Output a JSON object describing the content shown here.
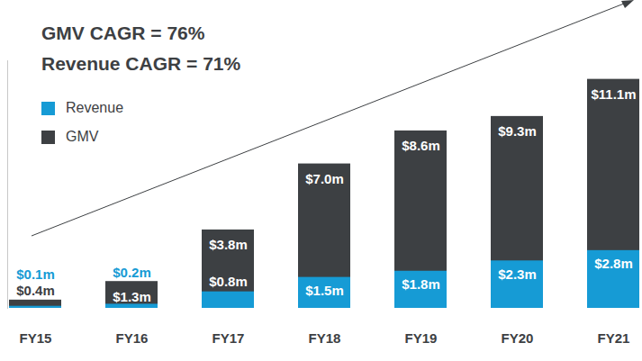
{
  "chart_data": {
    "type": "bar",
    "annotations": [
      "GMV CAGR = 76%",
      "Revenue CAGR = 71%"
    ],
    "categories": [
      "FY15",
      "FY16",
      "FY17",
      "FY18",
      "FY19",
      "FY20",
      "FY21"
    ],
    "series": [
      {
        "name": "Revenue",
        "color": "#169bd5",
        "values": [
          0.1,
          0.2,
          0.8,
          1.5,
          1.8,
          2.3,
          2.8
        ],
        "value_labels": [
          "$0.1m",
          "$0.2m",
          "$0.8m",
          "$1.5m",
          "$1.8m",
          "$2.3m",
          "$2.8m"
        ]
      },
      {
        "name": "GMV",
        "color": "#3d4043",
        "values": [
          0.4,
          1.3,
          3.8,
          7.0,
          8.6,
          9.3,
          11.1
        ],
        "value_labels": [
          "$0.4m",
          "$1.3m",
          "$3.8m",
          "$7.0m",
          "$8.6m",
          "$9.3m",
          "$11.1m"
        ]
      }
    ],
    "ylim": [
      0,
      12
    ],
    "yticks": [],
    "stacked": false,
    "data_labels": true,
    "tick_labels": "x",
    "legend": "top-left",
    "grid": false
  }
}
